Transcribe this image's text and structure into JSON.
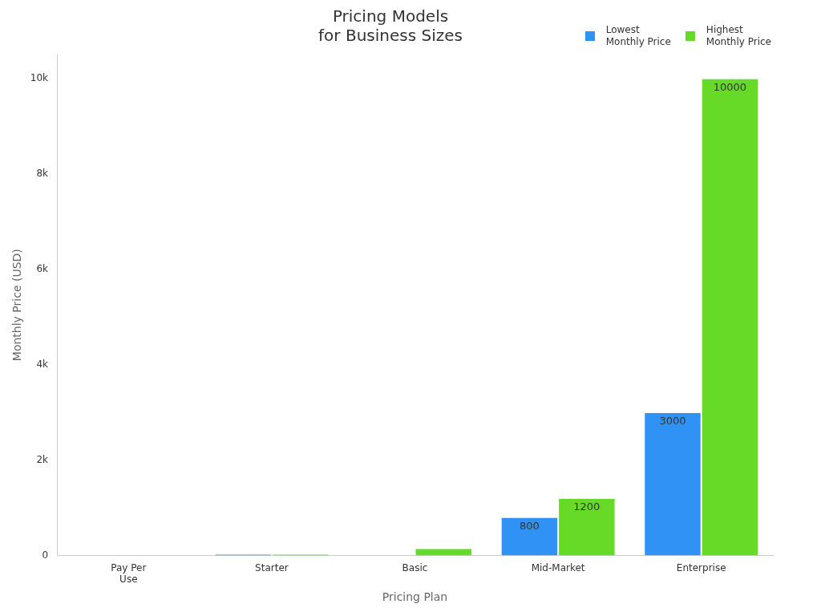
{
  "chart_data": {
    "type": "bar",
    "title": "Pricing Models for Business Sizes",
    "xlabel": "Pricing Plan",
    "ylabel": "Monthly Price (USD)",
    "categories": [
      "Pay Per Use",
      "Starter",
      "Basic",
      "Mid-Market",
      "Enterprise"
    ],
    "series": [
      {
        "name": "Lowest Monthly Price",
        "color": "#3192f5",
        "values": [
          0,
          30,
          0,
          800,
          3000
        ],
        "value_labels": [
          null,
          null,
          null,
          "800",
          "3000"
        ]
      },
      {
        "name": "Highest Monthly Price",
        "color": "#66da26",
        "values": [
          0,
          30,
          150,
          1200,
          10000
        ],
        "value_labels": [
          null,
          null,
          null,
          "1200",
          "10000"
        ]
      }
    ],
    "ylim": [
      0,
      10500
    ],
    "yticks": [
      0,
      {
        "value": 2000,
        "label": "2k"
      },
      {
        "value": 4000,
        "label": "4k"
      },
      {
        "value": 6000,
        "label": "6k"
      },
      {
        "value": 8000,
        "label": "8k"
      },
      {
        "value": 10000,
        "label": "10k"
      }
    ],
    "grid": false,
    "legend": "top right"
  }
}
